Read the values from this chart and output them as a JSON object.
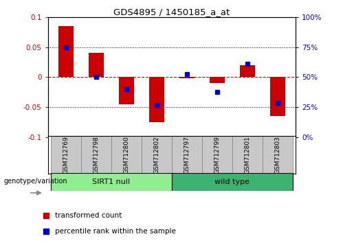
{
  "title": "GDS4895 / 1450185_a_at",
  "samples": [
    "GSM712769",
    "GSM712798",
    "GSM712800",
    "GSM712802",
    "GSM712797",
    "GSM712799",
    "GSM712801",
    "GSM712803"
  ],
  "red_bars": [
    0.085,
    0.04,
    -0.045,
    -0.075,
    -0.002,
    -0.01,
    0.02,
    -0.065
  ],
  "blue_squares": [
    0.05,
    0.0,
    -0.02,
    -0.046,
    0.005,
    -0.025,
    0.022,
    -0.043
  ],
  "group1_label": "SIRT1 null",
  "group2_label": "wild type",
  "ylim": [
    -0.1,
    0.1
  ],
  "yticks_left": [
    -0.1,
    -0.05,
    0,
    0.05,
    0.1
  ],
  "yticks_right": [
    0,
    25,
    50,
    75,
    100
  ],
  "red_color": "#CC0000",
  "blue_color": "#0000CC",
  "group1_color": "#90EE90",
  "group2_color": "#3CB371",
  "label_bg_color": "#C8C8C8",
  "zero_line_color": "#CC0000",
  "bar_width": 0.5,
  "legend_red_label": "transformed count",
  "legend_blue_label": "percentile rank within the sample",
  "genotype_label": "genotype/variation"
}
